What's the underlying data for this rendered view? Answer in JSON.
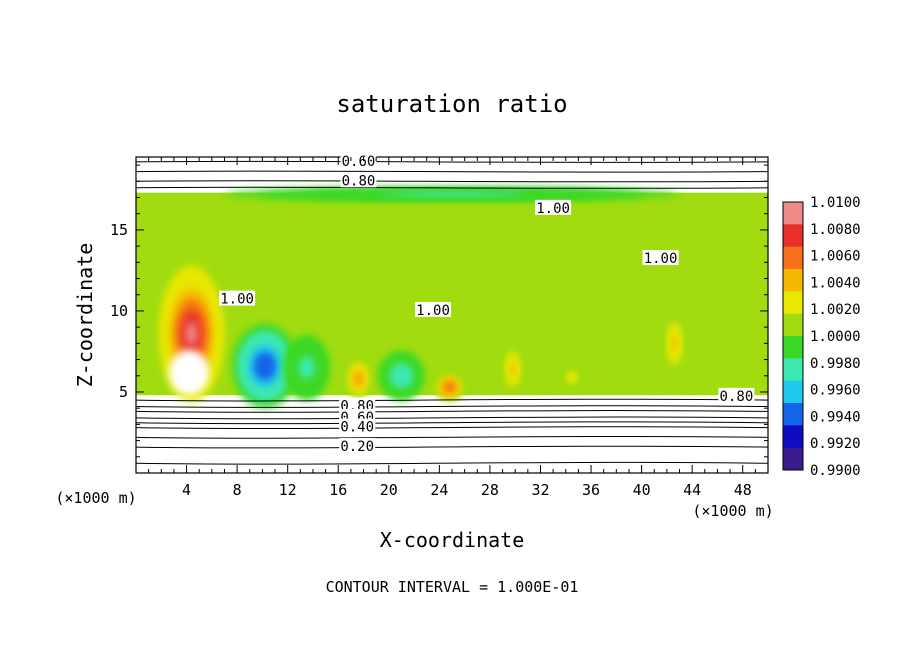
{
  "chart_data": {
    "type": "heatmap",
    "title": "saturation ratio",
    "xlabel": "X-coordinate",
    "ylabel": "Z-coordinate",
    "x_unit": "(×1000 m)",
    "footer": "CONTOUR INTERVAL = 1.000E-01",
    "xlim": [
      0,
      50
    ],
    "ylim": [
      0,
      19.5
    ],
    "x_ticks": [
      4,
      8,
      12,
      16,
      20,
      24,
      28,
      32,
      36,
      40,
      44,
      48
    ],
    "y_ticks": [
      5,
      10,
      15
    ],
    "colorbar": {
      "levels": [
        "1.0100",
        "1.0080",
        "1.0060",
        "1.0040",
        "1.0020",
        "1.0000",
        "0.9980",
        "0.9960",
        "0.9940",
        "0.9920",
        "0.9900"
      ],
      "colors": [
        "#ee8a8a",
        "#e8302a",
        "#f57018",
        "#f7b900",
        "#e8e800",
        "#a0dc10",
        "#3cd828",
        "#3ce8b0",
        "#20c8f0",
        "#1464e8",
        "#0c0cc0",
        "#3a1c8c"
      ]
    },
    "cloud_layer": {
      "bottom_km": 4.8,
      "top_km": 17.3
    },
    "contour_labels": [
      {
        "text": "0.60",
        "x": 17.6,
        "y": 19.2
      },
      {
        "text": "0.80",
        "x": 17.6,
        "y": 18.0
      },
      {
        "text": "1.00",
        "x": 33.0,
        "y": 16.3
      },
      {
        "text": "1.00",
        "x": 41.5,
        "y": 13.2
      },
      {
        "text": "1.00",
        "x": 8.0,
        "y": 10.7
      },
      {
        "text": "1.00",
        "x": 23.5,
        "y": 10.0
      },
      {
        "text": "0.80",
        "x": 17.5,
        "y": 4.1
      },
      {
        "text": "0.60",
        "x": 17.5,
        "y": 3.4
      },
      {
        "text": "0.40",
        "x": 17.5,
        "y": 2.8
      },
      {
        "text": "0.20",
        "x": 17.5,
        "y": 1.6
      },
      {
        "text": "0.80",
        "x": 47.5,
        "y": 4.7
      }
    ],
    "fields": [
      {
        "name": "warm-plume",
        "x": 4.4,
        "y": 8.6,
        "value": 1.01,
        "rx": 2.6,
        "ry": 4.2
      },
      {
        "name": "cold-plume",
        "x": 10.2,
        "y": 6.6,
        "value": 0.992,
        "rx": 2.6,
        "ry": 2.6
      },
      {
        "name": "cold-plume",
        "x": 21.0,
        "y": 6.0,
        "value": 0.996,
        "rx": 1.8,
        "ry": 1.5
      },
      {
        "name": "cold-plume",
        "x": 13.5,
        "y": 6.5,
        "value": 0.997,
        "rx": 1.8,
        "ry": 2.0
      },
      {
        "name": "warm-cell",
        "x": 17.6,
        "y": 5.8,
        "value": 1.006,
        "rx": 0.9,
        "ry": 1.2
      },
      {
        "name": "warm-cell",
        "x": 24.8,
        "y": 5.3,
        "value": 1.008,
        "rx": 1.1,
        "ry": 0.8
      },
      {
        "name": "warm-cell",
        "x": 29.8,
        "y": 6.4,
        "value": 1.005,
        "rx": 0.6,
        "ry": 1.3
      },
      {
        "name": "warm-cell",
        "x": 42.6,
        "y": 8.0,
        "value": 1.005,
        "rx": 0.6,
        "ry": 1.6
      },
      {
        "name": "warm-cell",
        "x": 34.5,
        "y": 5.9,
        "value": 1.004,
        "rx": 0.6,
        "ry": 0.5
      },
      {
        "name": "moist-top",
        "x": 25.0,
        "y": 17.2,
        "value": 0.997,
        "rx": 18.0,
        "ry": 0.4
      }
    ]
  }
}
